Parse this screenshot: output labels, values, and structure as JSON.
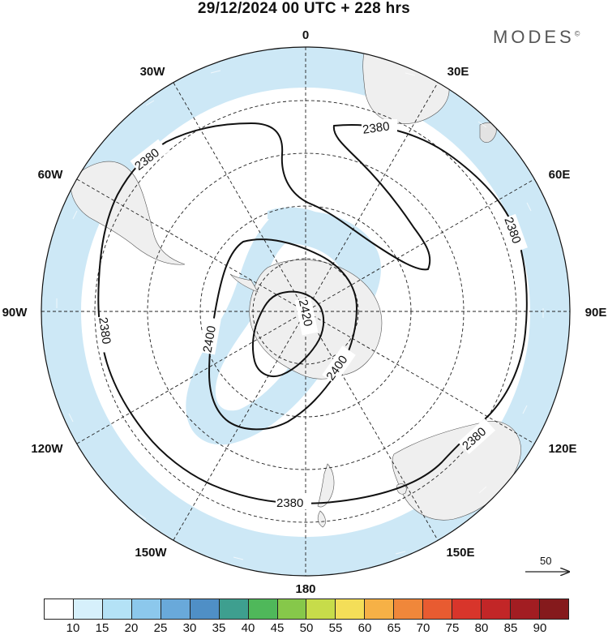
{
  "title": "29/12/2024  00 UTC  + 228 hrs",
  "brand": "MODES",
  "brand_mark": "©",
  "longitude_labels": [
    "0",
    "30E",
    "60E",
    "90E",
    "120E",
    "150E",
    "180",
    "150W",
    "120W",
    "90W",
    "60W",
    "30W"
  ],
  "contours": [
    {
      "label": "2380",
      "level": 2380
    },
    {
      "label": "2400",
      "level": 2400
    },
    {
      "label": "2420",
      "level": 2420
    }
  ],
  "contour_label_texts": [
    "2380",
    "2380",
    "2380",
    "2380",
    "2380",
    "2400",
    "2400",
    "2420"
  ],
  "wind_reference": {
    "label": "50"
  },
  "colorbar": {
    "colors": [
      "#ffffff",
      "#d6f0fb",
      "#b4e2f6",
      "#8cc8ec",
      "#69a9da",
      "#4f8fc6",
      "#3e9f8f",
      "#4fb85a",
      "#86c84a",
      "#c7dc4a",
      "#f4de58",
      "#f6b146",
      "#f0873a",
      "#e85b31",
      "#d8352b",
      "#c22627",
      "#a21d22",
      "#851a1c"
    ],
    "labels": [
      "10",
      "15",
      "20",
      "25",
      "30",
      "35",
      "40",
      "45",
      "50",
      "55",
      "60",
      "65",
      "70",
      "75",
      "80",
      "85",
      "90"
    ]
  },
  "colors": {
    "jet_fill": "#cde8f6",
    "land": "#efefef",
    "contour": "#111111",
    "grid": "#222222"
  }
}
